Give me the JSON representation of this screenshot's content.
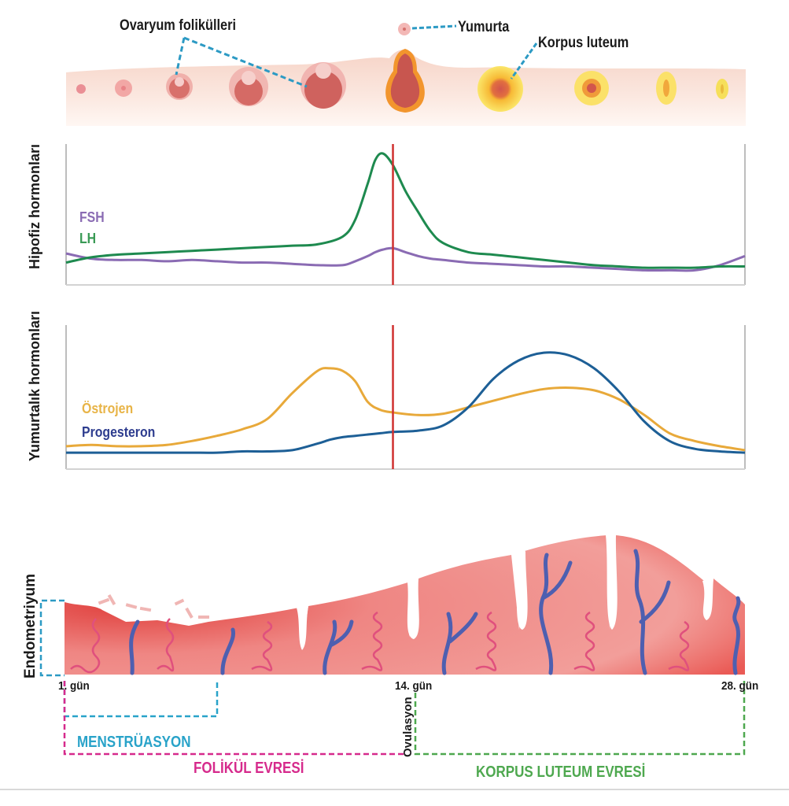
{
  "ovary": {
    "labels": {
      "follicles": "Ovaryum folikülleri",
      "egg": "Yumurta",
      "corpus_luteum": "Korpus luteum"
    },
    "stages": [
      "primordial",
      "primary",
      "secondary",
      "antral",
      "graafian",
      "ovulating",
      "corpus-luteum",
      "corpus-luteum-regressing",
      "corpus-albicans",
      "corpus-albicans-small"
    ]
  },
  "colors": {
    "fsh": "#8a6bb3",
    "lh": "#1e8a4f",
    "estrogen": "#e8a93a",
    "progesterone": "#1d5f96",
    "ovulation_line": "#d0302f",
    "menstruation": "#29a3c9",
    "follicular": "#d62a8c",
    "luteal": "#4ea84f",
    "callout_line": "#2c9ac4"
  },
  "chart_data": [
    {
      "type": "line",
      "title": "",
      "ylabel": "Hipofiz hormonları",
      "xlabel": "",
      "xlim": [
        1,
        28
      ],
      "ylim": [
        0,
        100
      ],
      "grid": false,
      "legend": "left",
      "vline": {
        "x": 14,
        "label": "Ovulasyon"
      },
      "x": [
        1,
        2,
        3,
        4,
        5,
        6,
        7,
        8,
        9,
        10,
        11,
        12,
        12.5,
        13,
        13.3,
        13.6,
        14,
        14.5,
        15,
        15.5,
        16,
        17,
        18,
        19,
        20,
        21,
        22,
        23,
        24,
        25,
        26,
        27,
        28
      ],
      "series": [
        {
          "name": "FSH",
          "values": [
            20,
            16,
            15,
            15,
            14,
            15,
            14,
            13,
            13,
            12,
            11,
            11,
            14,
            18,
            21,
            23,
            24,
            21,
            18,
            16,
            15,
            13,
            12,
            11,
            10,
            10,
            9,
            8,
            7,
            7,
            7,
            11,
            18
          ]
        },
        {
          "name": "LH",
          "values": [
            13,
            17,
            19,
            20,
            21,
            22,
            23,
            24,
            25,
            26,
            27,
            33,
            46,
            74,
            92,
            97,
            88,
            68,
            52,
            37,
            28,
            21,
            19,
            17,
            15,
            13,
            11,
            10,
            9,
            9,
            9,
            10,
            10
          ]
        }
      ]
    },
    {
      "type": "line",
      "title": "",
      "ylabel": "Yumurtalık hormonları",
      "xlabel": "",
      "xlim": [
        1,
        28
      ],
      "ylim": [
        0,
        100
      ],
      "grid": false,
      "legend": "left",
      "vline": {
        "x": 14,
        "label": "Ovulasyon"
      },
      "x": [
        1,
        2,
        3,
        4,
        5,
        6,
        7,
        8,
        9,
        10,
        11,
        11.5,
        12,
        12.5,
        13,
        13.5,
        14,
        15,
        16,
        17,
        18,
        19,
        20,
        21,
        22,
        23,
        24,
        25,
        26,
        27,
        28
      ],
      "series": [
        {
          "name": "Östrojen",
          "values": [
            14,
            15,
            14,
            14,
            15,
            18,
            22,
            27,
            35,
            55,
            72,
            74,
            72,
            64,
            48,
            42,
            40,
            38,
            39,
            44,
            49,
            54,
            58,
            59,
            57,
            50,
            38,
            24,
            18,
            14,
            11
          ],
          "color": "#e8a93a"
        },
        {
          "name": "Progesteron",
          "values": [
            9,
            9,
            9,
            9,
            9,
            9,
            9,
            10,
            10,
            11,
            16,
            19,
            21,
            22,
            23,
            24,
            25,
            26,
            30,
            44,
            66,
            80,
            86,
            84,
            74,
            56,
            33,
            18,
            12,
            10,
            9
          ],
          "color": "#1d5f96"
        }
      ]
    }
  ],
  "endometrium": {
    "label": "Endometriyum",
    "day_labels": [
      "1. gün",
      "14. gün",
      "28. gün"
    ],
    "phases": {
      "menstruation": "MENSTRÜASYON",
      "follicular": "FOLİKÜL EVRESİ",
      "ovulation": "Ovulasyon",
      "luteal": "KORPUS LUTEUM EVRESİ"
    }
  }
}
